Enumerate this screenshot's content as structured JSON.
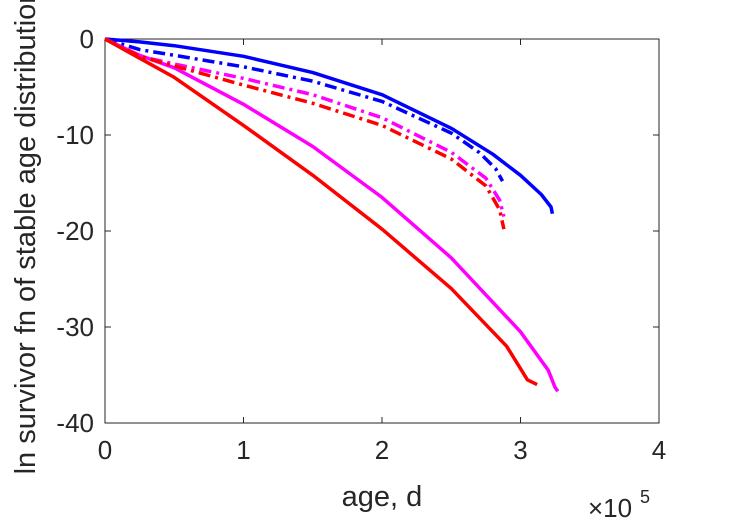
{
  "chart_data": {
    "type": "line",
    "xlabel": "age, d",
    "ylabel": "ln survivor fn of stable age distribution",
    "x_multiplier": "×10^5",
    "x_multiplier_base": "×10",
    "x_multiplier_exp": "5",
    "xlim": [
      0,
      400000
    ],
    "ylim": [
      -40,
      0
    ],
    "xticks": [
      0,
      100000,
      200000,
      300000,
      400000
    ],
    "xtick_labels": [
      "0",
      "1",
      "2",
      "3",
      "4"
    ],
    "yticks": [
      0,
      -10,
      -20,
      -30,
      -40
    ],
    "ytick_labels": [
      "0",
      "-10",
      "-20",
      "-30",
      "-40"
    ],
    "grid": false,
    "series": [
      {
        "color": "#0000ff",
        "style": "solid",
        "x": [
          0,
          25000,
          50000,
          100000,
          150000,
          200000,
          250000,
          280000,
          300000,
          315000,
          322000,
          323000
        ],
        "y": [
          0,
          -0.3,
          -0.7,
          -1.8,
          -3.5,
          -5.8,
          -9.3,
          -12.0,
          -14.2,
          -16.2,
          -17.5,
          -18.2
        ]
      },
      {
        "color": "#0000ff",
        "style": "dashdot",
        "x": [
          0,
          25000,
          50000,
          100000,
          150000,
          200000,
          250000,
          270000,
          282000,
          287000
        ],
        "y": [
          0,
          -1.1,
          -1.7,
          -2.9,
          -4.4,
          -6.5,
          -9.8,
          -11.8,
          -13.5,
          -14.8
        ]
      },
      {
        "color": "#ff00ff",
        "style": "solid",
        "x": [
          0,
          25000,
          50000,
          100000,
          150000,
          200000,
          250000,
          300000,
          320000,
          325000,
          327000
        ],
        "y": [
          0,
          -1.7,
          -3.0,
          -6.8,
          -11.2,
          -16.5,
          -22.8,
          -30.5,
          -34.5,
          -36.3,
          -36.7
        ]
      },
      {
        "color": "#ff00ff",
        "style": "dashdot",
        "x": [
          0,
          25000,
          50000,
          100000,
          150000,
          200000,
          250000,
          275000,
          285000,
          288000
        ],
        "y": [
          0,
          -1.8,
          -2.6,
          -4.1,
          -5.8,
          -8.2,
          -11.8,
          -14.5,
          -16.8,
          -18.5
        ]
      },
      {
        "color": "#ff0000",
        "style": "solid",
        "x": [
          0,
          25000,
          50000,
          100000,
          150000,
          200000,
          250000,
          290000,
          305000,
          312000
        ],
        "y": [
          0,
          -2.0,
          -4.0,
          -9.0,
          -14.2,
          -19.8,
          -26.0,
          -32.0,
          -35.5,
          -36.0
        ]
      },
      {
        "color": "#ff0000",
        "style": "dashdot",
        "x": [
          0,
          25000,
          50000,
          100000,
          150000,
          200000,
          250000,
          275000,
          285000,
          288000
        ],
        "y": [
          0,
          -1.8,
          -2.8,
          -4.8,
          -6.7,
          -9.0,
          -12.5,
          -15.3,
          -17.8,
          -19.8
        ]
      }
    ]
  }
}
